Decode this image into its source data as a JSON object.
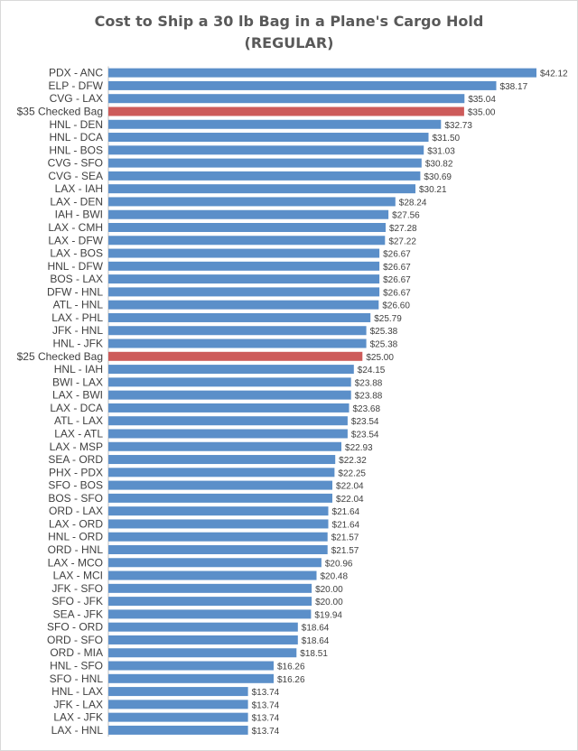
{
  "chart_data": {
    "type": "bar",
    "orientation": "horizontal",
    "title_line1": "Cost to Ship a 30 lb Bag in a Plane's Cargo Hold",
    "title_line2": "(REGULAR)",
    "xlabel": "",
    "ylabel": "",
    "xlim": [
      0,
      42.12
    ],
    "grid": false,
    "legend": "none",
    "colors": {
      "default": "#5b8fc9",
      "highlight": "#cd5b5a"
    },
    "value_prefix": "$",
    "highlight": [
      "$35 Checked Bag",
      "$25 Checked Bag"
    ],
    "categories": [
      "PDX - ANC",
      "ELP - DFW",
      "CVG - LAX",
      "$35 Checked Bag",
      "HNL - DEN",
      "HNL - DCA",
      "HNL - BOS",
      "CVG - SFO",
      "CVG - SEA",
      "LAX - IAH",
      "LAX - DEN",
      "IAH - BWI",
      "LAX - CMH",
      "LAX - DFW",
      "LAX - BOS",
      "HNL - DFW",
      "BOS - LAX",
      "DFW - HNL",
      "ATL - HNL",
      "LAX - PHL",
      "JFK - HNL",
      "HNL - JFK",
      "$25 Checked Bag",
      "HNL - IAH",
      "BWI - LAX",
      "LAX - BWI",
      "LAX - DCA",
      "ATL - LAX",
      "LAX - ATL",
      "LAX - MSP",
      "SEA - ORD",
      "PHX - PDX",
      "SFO - BOS",
      "BOS - SFO",
      "ORD - LAX",
      "LAX - ORD",
      "HNL - ORD",
      "ORD - HNL",
      "LAX - MCO",
      "LAX - MCI",
      "JFK - SFO",
      "SFO - JFK",
      "SEA - JFK",
      "SFO - ORD",
      "ORD - SFO",
      "ORD - MIA",
      "HNL - SFO",
      "SFO - HNL",
      "HNL - LAX",
      "JFK - LAX",
      "LAX - JFK",
      "LAX - HNL"
    ],
    "values": [
      42.12,
      38.17,
      35.04,
      35.0,
      32.73,
      31.5,
      31.03,
      30.82,
      30.69,
      30.21,
      28.24,
      27.56,
      27.28,
      27.22,
      26.67,
      26.67,
      26.67,
      26.67,
      26.6,
      25.79,
      25.38,
      25.38,
      25.0,
      24.15,
      23.88,
      23.88,
      23.68,
      23.54,
      23.54,
      22.93,
      22.32,
      22.25,
      22.04,
      22.04,
      21.64,
      21.64,
      21.57,
      21.57,
      20.96,
      20.48,
      20.0,
      20.0,
      19.94,
      18.64,
      18.64,
      18.51,
      16.26,
      16.26,
      13.74,
      13.74,
      13.74,
      13.74
    ]
  }
}
